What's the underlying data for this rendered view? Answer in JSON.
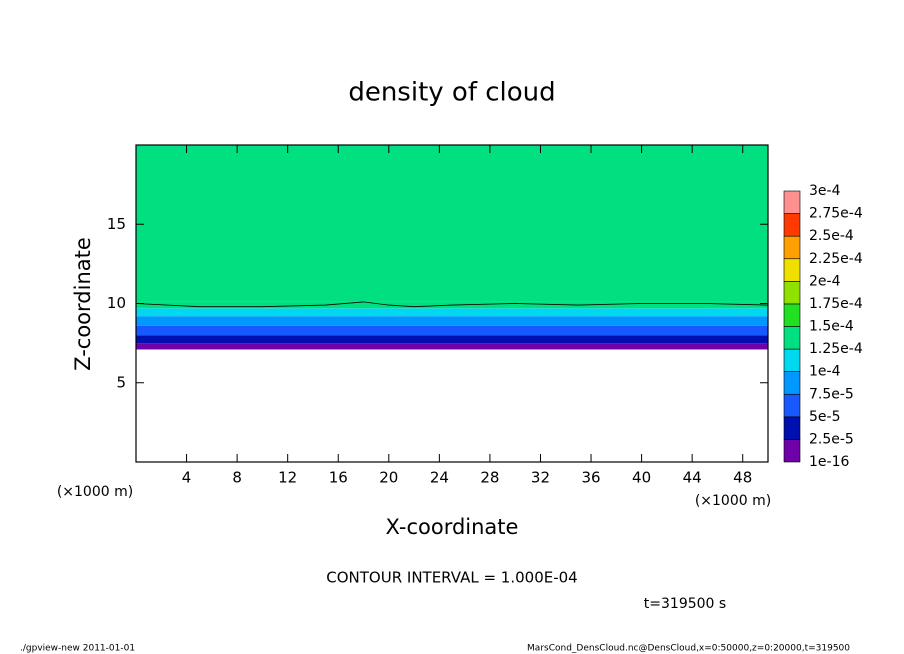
{
  "chart_data": {
    "type": "contour",
    "title": "density of cloud",
    "x_label": "X-coordinate",
    "y_label": "Z-coordinate",
    "x_unit": "(×1000 m)",
    "y_unit": "(×1000 m)",
    "xlim": [
      0,
      50
    ],
    "ylim": [
      0,
      20
    ],
    "xticks": [
      4,
      8,
      12,
      16,
      20,
      24,
      28,
      32,
      36,
      40,
      44,
      48
    ],
    "yticks": [
      5,
      10,
      15
    ],
    "profile": {
      "z": [
        7.1,
        7.5,
        8.0,
        8.6,
        9.2,
        9.7,
        10.1
      ],
      "values": [
        1e-05,
        3.5e-05,
        6e-05,
        9e-05,
        0.00011,
        0.00013,
        0.00014
      ]
    },
    "contour": {
      "x": [
        0,
        5,
        10,
        15,
        18,
        20,
        22,
        25,
        30,
        35,
        40,
        45,
        50
      ],
      "z": [
        10.0,
        9.8,
        9.8,
        9.9,
        10.1,
        9.9,
        9.8,
        9.9,
        10.0,
        9.9,
        10.0,
        10.0,
        9.9
      ]
    },
    "colorbar": {
      "levels": [
        {
          "value": 1e-16,
          "label": "1e-16"
        },
        {
          "value": 2.5e-05,
          "label": "2.5e-5"
        },
        {
          "value": 5e-05,
          "label": "5e-5"
        },
        {
          "value": 7.5e-05,
          "label": "7.5e-5"
        },
        {
          "value": 0.0001,
          "label": "1e-4"
        },
        {
          "value": 0.000125,
          "label": "1.25e-4"
        },
        {
          "value": 0.00015,
          "label": "1.5e-4"
        },
        {
          "value": 0.000175,
          "label": "1.75e-4"
        },
        {
          "value": 0.0002,
          "label": "2e-4"
        },
        {
          "value": 0.000225,
          "label": "2.25e-4"
        },
        {
          "value": 0.00025,
          "label": "2.5e-4"
        },
        {
          "value": 0.000275,
          "label": "2.75e-4"
        },
        {
          "value": 0.0003,
          "label": "3e-4"
        }
      ],
      "colors": [
        "#7000a8",
        "#0010b0",
        "#1858ff",
        "#0098ff",
        "#00d8f0",
        "#00e080",
        "#20e020",
        "#90e000",
        "#f0e000",
        "#ffa000",
        "#ff3a00",
        "#ff9090"
      ]
    },
    "contour_interval_text": "CONTOUR INTERVAL = 1.000E-04",
    "time_text": "t=319500 s",
    "footer_left": "./gpview-new   2011-01-01",
    "footer_right": "MarsCond_DensCloud.nc@DensCloud,x=0:50000,z=0:20000,t=319500"
  }
}
